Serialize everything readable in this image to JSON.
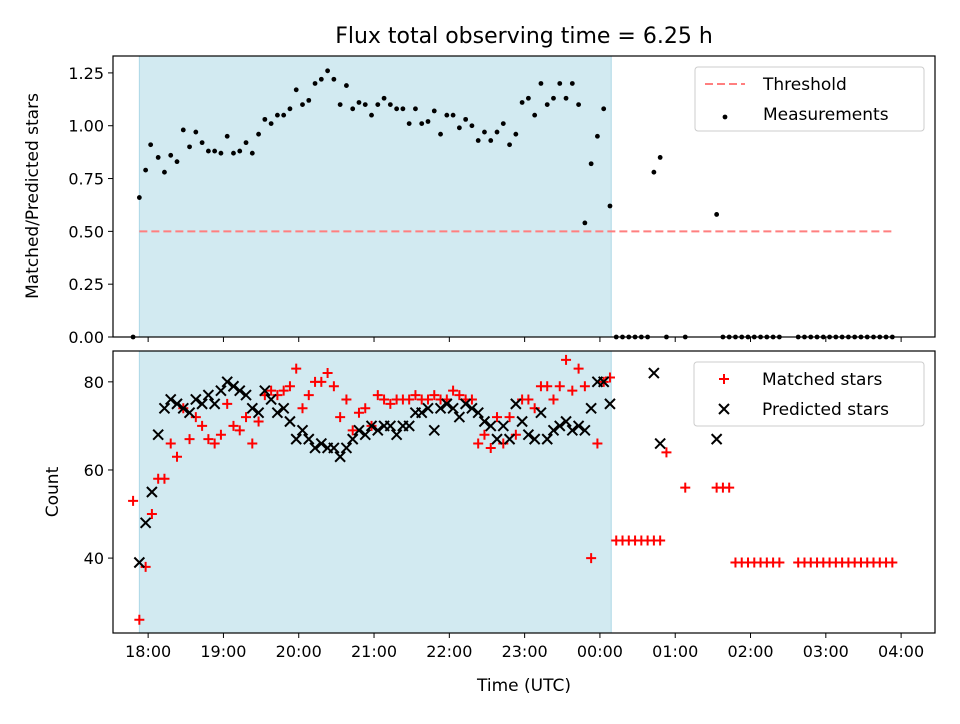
{
  "figure": {
    "title": "Flux total observing time = 6.25 h"
  },
  "colors": {
    "shade": "#add8e6",
    "threshold": "#ff7f7f",
    "measurements": "#000000",
    "matched": "#ff0000",
    "predicted": "#000000"
  },
  "chart_data": [
    {
      "type": "scatter",
      "title": "Flux total observing time = 6.25 h",
      "xlabel": "",
      "ylabel": "Matched/Predicted stars",
      "ylim": [
        0,
        1.33
      ],
      "xlim": [
        "17:32",
        "04:27"
      ],
      "x_ticks": [
        "18:00",
        "19:00",
        "20:00",
        "21:00",
        "22:00",
        "23:00",
        "00:00",
        "01:00",
        "02:00",
        "03:00",
        "04:00"
      ],
      "y_ticks": [
        "0.00",
        "0.25",
        "0.50",
        "0.75",
        "1.00",
        "1.25"
      ],
      "shaded_interval": [
        "17:53",
        "00:09"
      ],
      "legend_position": "upper right",
      "threshold": {
        "name": "Threshold",
        "y": 0.5,
        "x_range": [
          "17:53",
          "03:53"
        ]
      },
      "series": [
        {
          "name": "Measurements",
          "marker": "dot",
          "x": [
            "17:48",
            "17:53",
            "17:58",
            "18:02",
            "18:08",
            "18:13",
            "18:18",
            "18:23",
            "18:28",
            "18:33",
            "18:38",
            "18:43",
            "18:48",
            "18:53",
            "18:58",
            "19:03",
            "19:08",
            "19:13",
            "19:18",
            "19:23",
            "19:28",
            "19:33",
            "19:38",
            "19:43",
            "19:48",
            "19:53",
            "19:58",
            "20:03",
            "20:08",
            "20:13",
            "20:18",
            "20:23",
            "20:28",
            "20:33",
            "20:38",
            "20:43",
            "20:48",
            "20:53",
            "20:58",
            "21:03",
            "21:08",
            "21:13",
            "21:18",
            "21:23",
            "21:28",
            "21:33",
            "21:38",
            "21:43",
            "21:48",
            "21:53",
            "21:58",
            "22:03",
            "22:08",
            "22:13",
            "22:18",
            "22:23",
            "22:28",
            "22:33",
            "22:38",
            "22:43",
            "22:48",
            "22:53",
            "22:58",
            "23:03",
            "23:08",
            "23:13",
            "23:18",
            "23:23",
            "23:28",
            "23:33",
            "23:38",
            "23:43",
            "23:48",
            "23:53",
            "23:58",
            "00:03",
            "00:08",
            "00:13",
            "00:18",
            "00:23",
            "00:28",
            "00:33",
            "00:38",
            "00:43",
            "00:48",
            "00:53",
            "01:08",
            "01:33",
            "01:38",
            "01:43",
            "01:48",
            "01:53",
            "01:58",
            "02:03",
            "02:08",
            "02:13",
            "02:18",
            "02:23",
            "02:38",
            "02:43",
            "02:48",
            "02:53",
            "02:58",
            "03:03",
            "03:08",
            "03:13",
            "03:18",
            "03:23",
            "03:28",
            "03:33",
            "03:38",
            "03:43",
            "03:48",
            "03:53"
          ],
          "y": [
            0.0,
            0.66,
            0.79,
            0.91,
            0.85,
            0.78,
            0.86,
            0.83,
            0.98,
            0.9,
            0.97,
            0.92,
            0.88,
            0.88,
            0.87,
            0.95,
            0.87,
            0.88,
            0.92,
            0.87,
            0.96,
            1.03,
            1.01,
            1.05,
            1.05,
            1.08,
            1.17,
            1.1,
            1.12,
            1.2,
            1.22,
            1.26,
            1.22,
            1.1,
            1.19,
            1.08,
            1.11,
            1.1,
            1.05,
            1.1,
            1.13,
            1.1,
            1.08,
            1.08,
            1.01,
            1.08,
            1.01,
            1.02,
            1.07,
            0.96,
            1.05,
            1.05,
            0.99,
            1.03,
            1.0,
            0.93,
            0.97,
            0.93,
            0.97,
            1.01,
            0.91,
            0.96,
            1.11,
            1.13,
            1.05,
            1.2,
            1.1,
            1.13,
            1.2,
            1.13,
            1.2,
            1.1,
            0.54,
            0.82,
            0.95,
            1.08,
            0.62,
            0.0,
            0.0,
            0.0,
            0.0,
            0.0,
            0.0,
            0.78,
            0.85,
            0.0,
            0.0,
            0.58,
            0.0,
            0.0,
            0.0,
            0.0,
            0.0,
            0.0,
            0.0,
            0.0,
            0.0,
            0.0,
            0.0,
            0.0,
            0.0,
            0.0,
            0.0,
            0.0,
            0.0,
            0.0,
            0.0,
            0.0,
            0.0,
            0.0,
            0.0,
            0.0,
            0.0,
            0.0
          ]
        }
      ]
    },
    {
      "type": "scatter",
      "title": "",
      "xlabel": "Time (UTC)",
      "ylabel": "Count",
      "ylim": [
        23,
        87
      ],
      "xlim": [
        "17:32",
        "04:27"
      ],
      "x_ticks": [
        "18:00",
        "19:00",
        "20:00",
        "21:00",
        "22:00",
        "23:00",
        "00:00",
        "01:00",
        "02:00",
        "03:00",
        "04:00"
      ],
      "y_ticks": [
        "40",
        "60",
        "80"
      ],
      "shaded_interval": [
        "17:53",
        "00:09"
      ],
      "legend_position": "upper right",
      "series": [
        {
          "name": "Matched stars",
          "marker": "plus",
          "x": [
            "17:48",
            "17:53",
            "17:58",
            "18:03",
            "18:08",
            "18:13",
            "18:18",
            "18:23",
            "18:28",
            "18:33",
            "18:38",
            "18:43",
            "18:48",
            "18:53",
            "18:58",
            "19:03",
            "19:08",
            "19:13",
            "19:18",
            "19:23",
            "19:28",
            "19:33",
            "19:38",
            "19:43",
            "19:48",
            "19:53",
            "19:58",
            "20:03",
            "20:08",
            "20:13",
            "20:18",
            "20:23",
            "20:28",
            "20:33",
            "20:38",
            "20:43",
            "20:48",
            "20:53",
            "20:58",
            "21:03",
            "21:08",
            "21:13",
            "21:18",
            "21:23",
            "21:28",
            "21:33",
            "21:38",
            "21:43",
            "21:48",
            "21:53",
            "21:58",
            "22:03",
            "22:08",
            "22:13",
            "22:18",
            "22:23",
            "22:28",
            "22:33",
            "22:38",
            "22:43",
            "22:48",
            "22:53",
            "22:58",
            "23:03",
            "23:08",
            "23:13",
            "23:18",
            "23:23",
            "23:28",
            "23:33",
            "23:38",
            "23:43",
            "23:48",
            "23:53",
            "23:58",
            "00:03",
            "00:08",
            "00:13",
            "00:18",
            "00:23",
            "00:28",
            "00:33",
            "00:38",
            "00:43",
            "00:48",
            "00:53",
            "01:08",
            "01:33",
            "01:38",
            "01:43",
            "01:48",
            "01:53",
            "01:58",
            "02:03",
            "02:08",
            "02:13",
            "02:18",
            "02:23",
            "02:38",
            "02:43",
            "02:48",
            "02:53",
            "02:58",
            "03:03",
            "03:08",
            "03:13",
            "03:18",
            "03:23",
            "03:28",
            "03:33",
            "03:38",
            "03:43",
            "03:48",
            "03:53"
          ],
          "y": [
            53,
            26,
            38,
            50,
            58,
            58,
            66,
            63,
            74,
            67,
            72,
            70,
            67,
            66,
            68,
            75,
            70,
            69,
            72,
            66,
            71,
            77,
            78,
            77,
            78,
            79,
            83,
            74,
            77,
            80,
            80,
            82,
            79,
            72,
            76,
            69,
            73,
            74,
            70,
            77,
            76,
            75,
            76,
            76,
            76,
            77,
            76,
            76,
            77,
            76,
            76,
            78,
            77,
            76,
            76,
            66,
            68,
            65,
            72,
            66,
            72,
            68,
            76,
            76,
            74,
            79,
            79,
            76,
            79,
            85,
            78,
            83,
            79,
            40,
            66,
            80,
            81,
            44,
            44,
            44,
            44,
            44,
            44,
            44,
            44,
            64,
            56,
            56,
            56,
            56,
            39,
            39,
            39,
            39,
            39,
            39,
            39,
            39,
            39,
            39,
            39,
            39,
            39,
            39,
            39,
            39,
            39,
            39,
            39,
            39,
            39,
            39,
            39,
            39
          ]
        },
        {
          "name": "Predicted stars",
          "marker": "x",
          "x": [
            "17:53",
            "17:58",
            "18:03",
            "18:08",
            "18:13",
            "18:18",
            "18:23",
            "18:28",
            "18:33",
            "18:38",
            "18:43",
            "18:48",
            "18:53",
            "18:58",
            "19:03",
            "19:08",
            "19:13",
            "19:18",
            "19:23",
            "19:28",
            "19:33",
            "19:38",
            "19:43",
            "19:48",
            "19:53",
            "19:58",
            "20:03",
            "20:08",
            "20:13",
            "20:18",
            "20:23",
            "20:28",
            "20:33",
            "20:38",
            "20:43",
            "20:48",
            "20:53",
            "20:58",
            "21:03",
            "21:08",
            "21:13",
            "21:18",
            "21:23",
            "21:28",
            "21:33",
            "21:38",
            "21:43",
            "21:48",
            "21:53",
            "21:58",
            "22:03",
            "22:08",
            "22:13",
            "22:18",
            "22:23",
            "22:28",
            "22:33",
            "22:38",
            "22:43",
            "22:48",
            "22:53",
            "22:58",
            "23:03",
            "23:08",
            "23:13",
            "23:18",
            "23:23",
            "23:28",
            "23:33",
            "23:38",
            "23:43",
            "23:48",
            "23:53",
            "23:58",
            "00:03",
            "00:08",
            "00:43",
            "00:48",
            "01:33"
          ],
          "y": [
            39,
            48,
            55,
            68,
            74,
            76,
            75,
            74,
            73,
            76,
            75,
            77,
            75,
            78,
            80,
            79,
            78,
            77,
            74,
            73,
            78,
            76,
            73,
            74,
            71,
            67,
            69,
            67,
            65,
            66,
            65,
            65,
            63,
            65,
            67,
            69,
            68,
            70,
            69,
            70,
            70,
            68,
            70,
            70,
            73,
            73,
            74,
            69,
            74,
            75,
            74,
            72,
            75,
            74,
            73,
            71,
            70,
            67,
            70,
            67,
            75,
            71,
            68,
            67,
            73,
            67,
            69,
            70,
            71,
            69,
            70,
            69,
            74,
            80,
            80,
            75,
            82,
            66,
            67
          ]
        }
      ]
    }
  ]
}
